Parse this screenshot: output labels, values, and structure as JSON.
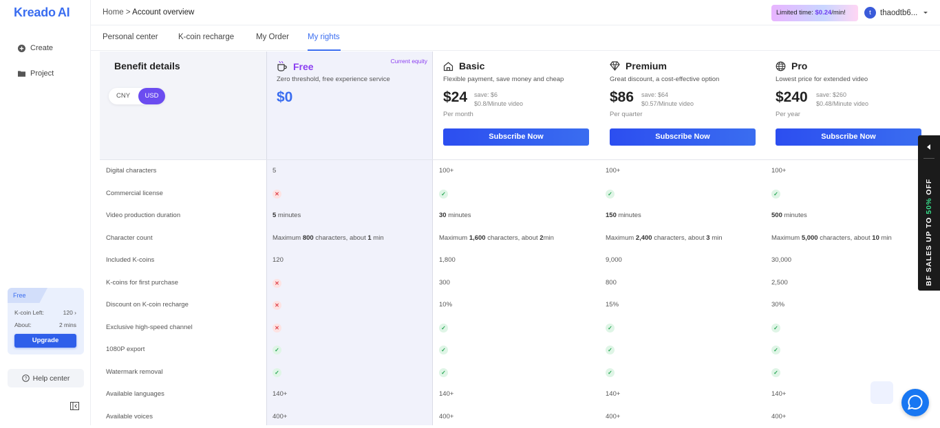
{
  "app": {
    "logo_text": "Kreado",
    "logo_suffix": "AI"
  },
  "sidebar": {
    "items": [
      {
        "label": "Create"
      },
      {
        "label": "Project"
      }
    ],
    "plan_card": {
      "plan": "Free",
      "kcoin_label": "K-coin Left:",
      "kcoin_value": "120 ›",
      "about_label": "About:",
      "about_value": "2 mins",
      "upgrade_label": "Upgrade"
    },
    "help_label": "Help center"
  },
  "topbar": {
    "breadcrumb_home": "Home",
    "breadcrumb_sep": ">",
    "breadcrumb_current": "Account overview",
    "promo_prefix": "Limited time: ",
    "promo_price": "$0.24",
    "promo_suffix": "/min!",
    "username": "thaodtb6...",
    "avatar_letter": "t"
  },
  "tabs": [
    {
      "label": "Personal center"
    },
    {
      "label": "K-coin recharge"
    },
    {
      "label": "My Order"
    },
    {
      "label": "My rights",
      "active": true
    }
  ],
  "benefits": {
    "title": "Benefit details",
    "currency_options": [
      "CNY",
      "USD"
    ],
    "currency_selected": "USD"
  },
  "plans": [
    {
      "name": "Free",
      "desc": "Zero threshold, free experience service",
      "price": "$0",
      "badge": "Current equity"
    },
    {
      "name": "Basic",
      "desc": "Flexible payment, save money and cheap",
      "price": "$24",
      "save": "save: $6",
      "per_min": "$0.8/Minute video",
      "period": "Per month",
      "button": "Subscribe Now"
    },
    {
      "name": "Premium",
      "desc": "Great discount, a cost-effective option",
      "price": "$86",
      "save": "save: $64",
      "per_min": "$0.57/Minute video",
      "period": "Per quarter",
      "button": "Subscribe Now"
    },
    {
      "name": "Pro",
      "desc": "Lowest price for extended video",
      "price": "$240",
      "save": "save: $260",
      "per_min": "$0.48/Minute video",
      "period": "Per year",
      "button": "Subscribe Now"
    }
  ],
  "rows": [
    {
      "label": "Digital characters",
      "values": [
        "5",
        "100+",
        "100+",
        "100+"
      ]
    },
    {
      "label": "Commercial license",
      "values": [
        "no",
        "yes",
        "yes",
        "yes"
      ]
    },
    {
      "label": "Video production duration",
      "values": [
        [
          "5",
          " minutes"
        ],
        [
          "30",
          " minutes"
        ],
        [
          "150",
          " minutes"
        ],
        [
          "500",
          " minutes"
        ]
      ]
    },
    {
      "label": "Character count",
      "values": [
        [
          "Maximum ",
          "800",
          " characters, about ",
          "1",
          " min"
        ],
        [
          "Maximum ",
          "1,600",
          " characters, about ",
          "2",
          "min"
        ],
        [
          "Maximum ",
          "2,400",
          " characters, about ",
          "3",
          " min"
        ],
        [
          "Maximum ",
          "5,000",
          " characters, about ",
          "10",
          " min"
        ]
      ]
    },
    {
      "label": "Included K-coins",
      "values": [
        "120",
        "1,800",
        "9,000",
        "30,000"
      ]
    },
    {
      "label": "K-coins for first purchase",
      "values": [
        "no",
        "300",
        "800",
        "2,500"
      ]
    },
    {
      "label": "Discount on K-coin recharge",
      "values": [
        "no",
        "10%",
        "15%",
        "30%"
      ]
    },
    {
      "label": "Exclusive high-speed channel",
      "values": [
        "no",
        "yes",
        "yes",
        "yes"
      ]
    },
    {
      "label": "1080P export",
      "values": [
        "yes",
        "yes",
        "yes",
        "yes"
      ]
    },
    {
      "label": "Watermark removal",
      "values": [
        "yes",
        "yes",
        "yes",
        "yes"
      ]
    },
    {
      "label": "Available languages",
      "values": [
        "140+",
        "140+",
        "140+",
        "140+"
      ]
    },
    {
      "label": "Available voices",
      "values": [
        "400+",
        "400+",
        "400+",
        "400+"
      ]
    }
  ],
  "promo_banner": {
    "prefix": "BF SALES UP TO ",
    "highlight": "50%",
    "suffix": " OFF"
  },
  "colors": {
    "accent": "#3a6df0",
    "purple": "#6b4cf0",
    "green": "#27a654",
    "red": "#e0454e"
  }
}
